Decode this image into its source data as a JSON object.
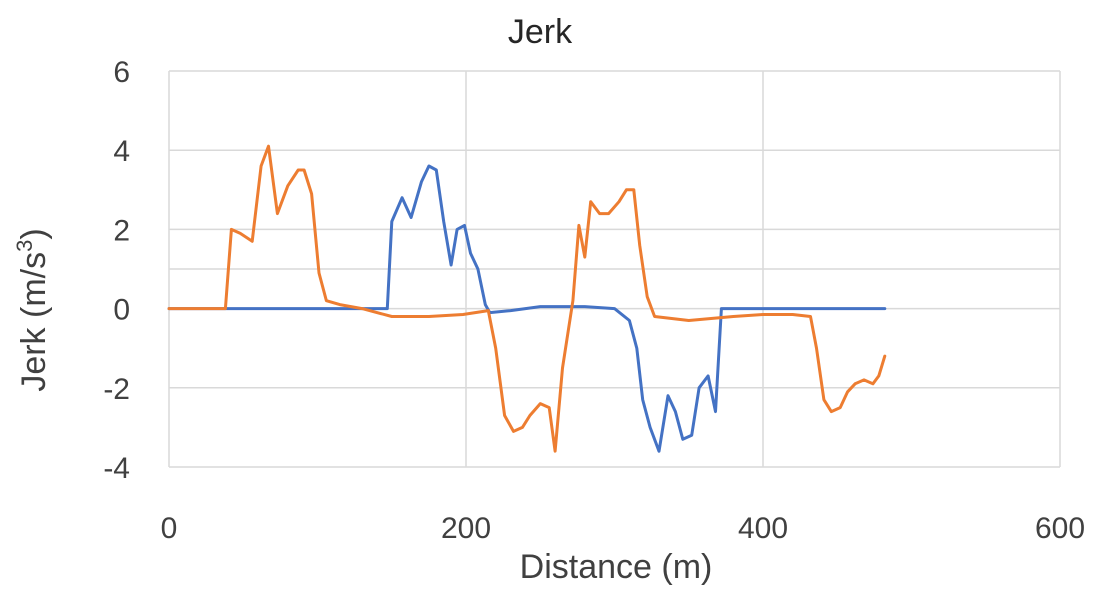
{
  "chart_data": {
    "type": "line",
    "title": "Jerk",
    "xlabel": "Distance (m)",
    "ylabel_main": "Jerk (m/s",
    "ylabel_sup": "3",
    "ylabel_end": ")",
    "xlim": [
      0,
      600
    ],
    "ylim": [
      -4,
      6
    ],
    "xticks": [
      0,
      200,
      400,
      600
    ],
    "xtick_labels": [
      "0",
      "200",
      "400",
      "600"
    ],
    "yticks": [
      -4,
      -2,
      0,
      2,
      4,
      6
    ],
    "ytick_labels": [
      "-4",
      "-2",
      "0",
      "2",
      "4",
      "6"
    ],
    "grid": true,
    "legend": false,
    "gridline_extra_y": 1,
    "series": [
      {
        "color": "#4472C4",
        "points": [
          [
            0,
            0
          ],
          [
            50,
            0
          ],
          [
            100,
            0
          ],
          [
            147,
            0
          ],
          [
            150,
            2.2
          ],
          [
            157,
            2.8
          ],
          [
            163,
            2.3
          ],
          [
            170,
            3.2
          ],
          [
            175,
            3.6
          ],
          [
            180,
            3.5
          ],
          [
            185,
            2.2
          ],
          [
            190,
            1.1
          ],
          [
            194,
            2.0
          ],
          [
            199,
            2.1
          ],
          [
            203,
            1.4
          ],
          [
            208,
            1.0
          ],
          [
            213,
            0.1
          ],
          [
            216,
            -0.1
          ],
          [
            230,
            -0.05
          ],
          [
            250,
            0.05
          ],
          [
            280,
            0.05
          ],
          [
            300,
            0.0
          ],
          [
            310,
            -0.3
          ],
          [
            315,
            -1.0
          ],
          [
            319,
            -2.3
          ],
          [
            324,
            -3.0
          ],
          [
            330,
            -3.6
          ],
          [
            336,
            -2.2
          ],
          [
            341,
            -2.6
          ],
          [
            346,
            -3.3
          ],
          [
            352,
            -3.2
          ],
          [
            357,
            -2.0
          ],
          [
            363,
            -1.7
          ],
          [
            368,
            -2.6
          ],
          [
            372,
            0
          ],
          [
            400,
            0
          ],
          [
            450,
            0
          ],
          [
            482,
            0
          ]
        ]
      },
      {
        "color": "#ED7D31",
        "points": [
          [
            0,
            0
          ],
          [
            20,
            0
          ],
          [
            38,
            0
          ],
          [
            42,
            2.0
          ],
          [
            48,
            1.9
          ],
          [
            56,
            1.7
          ],
          [
            62,
            3.6
          ],
          [
            67,
            4.1
          ],
          [
            73,
            2.4
          ],
          [
            80,
            3.1
          ],
          [
            87,
            3.5
          ],
          [
            91,
            3.5
          ],
          [
            96,
            2.9
          ],
          [
            101,
            0.9
          ],
          [
            106,
            0.2
          ],
          [
            115,
            0.1
          ],
          [
            130,
            0.0
          ],
          [
            150,
            -0.2
          ],
          [
            175,
            -0.2
          ],
          [
            198,
            -0.15
          ],
          [
            215,
            -0.05
          ],
          [
            220,
            -1.0
          ],
          [
            226,
            -2.7
          ],
          [
            232,
            -3.1
          ],
          [
            238,
            -3.0
          ],
          [
            243,
            -2.7
          ],
          [
            250,
            -2.4
          ],
          [
            256,
            -2.5
          ],
          [
            260,
            -3.6
          ],
          [
            265,
            -1.5
          ],
          [
            272,
            0.2
          ],
          [
            276,
            2.1
          ],
          [
            280,
            1.3
          ],
          [
            284,
            2.7
          ],
          [
            290,
            2.4
          ],
          [
            296,
            2.4
          ],
          [
            303,
            2.7
          ],
          [
            308,
            3.0
          ],
          [
            313,
            3.0
          ],
          [
            317,
            1.6
          ],
          [
            322,
            0.3
          ],
          [
            327,
            -0.2
          ],
          [
            350,
            -0.3
          ],
          [
            380,
            -0.2
          ],
          [
            400,
            -0.15
          ],
          [
            420,
            -0.15
          ],
          [
            432,
            -0.2
          ],
          [
            436,
            -1.0
          ],
          [
            441,
            -2.3
          ],
          [
            446,
            -2.6
          ],
          [
            452,
            -2.5
          ],
          [
            457,
            -2.1
          ],
          [
            462,
            -1.9
          ],
          [
            468,
            -1.8
          ],
          [
            474,
            -1.9
          ],
          [
            478,
            -1.7
          ],
          [
            482,
            -1.2
          ]
        ]
      }
    ]
  }
}
